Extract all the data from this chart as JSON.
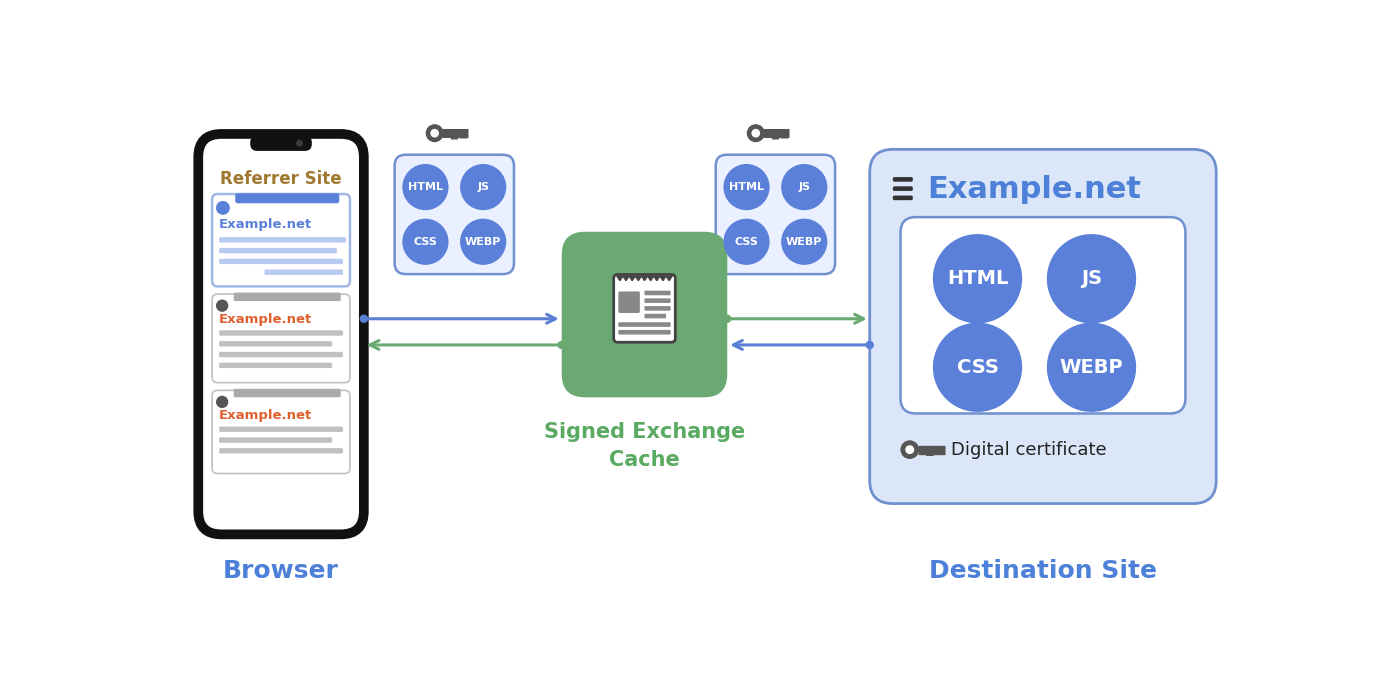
{
  "browser_label": "Browser",
  "referrer_label": "Referrer Site",
  "destination_label": "Destination Site",
  "cache_label": "Signed Exchange\nCache",
  "example_net": "Example.net",
  "digital_cert": "Digital certificate",
  "file_types_small": [
    "HTML",
    "JS",
    "CSS",
    "WEBP"
  ],
  "blue_circle_color": "#5b80d9",
  "green_box_color": "#6aaa72",
  "dest_box_fill": "#dce6f9",
  "dest_box_border": "#7090d0",
  "small_box_fill": "#eaf0ff",
  "small_box_border": "#7090d0",
  "arrow_green": "#6aaa72",
  "arrow_blue": "#5b7fd4",
  "label_blue": "#4d80d9",
  "label_green": "#5aaa62",
  "phone_border": "#111111",
  "bg_color": "#ffffff",
  "referrer_color": "#a07830",
  "example_net_color": "#e06030",
  "key_color": "#555555"
}
